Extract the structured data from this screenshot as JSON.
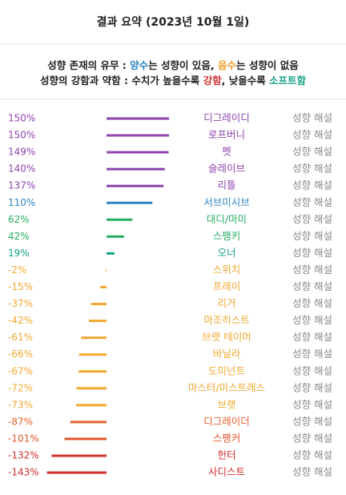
{
  "header": {
    "title": "결과 요약 (2023년 10월 1일)"
  },
  "legend": {
    "lines": [
      {
        "segments": [
          {
            "text": "성향 존재의 유무 : ",
            "color": "#222222"
          },
          {
            "text": "양수",
            "color": "#2e86c1"
          },
          {
            "text": "는 성향이 있음, ",
            "color": "#222222"
          },
          {
            "text": "음수",
            "color": "#f0a030"
          },
          {
            "text": "는 성향이 없음",
            "color": "#222222"
          }
        ]
      },
      {
        "segments": [
          {
            "text": "성향의 강함과 약함 : ",
            "color": "#222222"
          },
          {
            "text": "수치가 높을수록 ",
            "color": "#222222"
          },
          {
            "text": "강함",
            "color": "#d32f2f"
          },
          {
            "text": ", 낮을수록 ",
            "color": "#222222"
          },
          {
            "text": "소프트함",
            "color": "#16a085"
          }
        ]
      }
    ]
  },
  "rows": [
    {
      "value": 150,
      "value_label": "150%",
      "name": "디그레이디",
      "color": "#8e44ad",
      "link": "성향 해설"
    },
    {
      "value": 150,
      "value_label": "150%",
      "name": "로프버니",
      "color": "#8e44ad",
      "link": "성향 해설"
    },
    {
      "value": 149,
      "value_label": "149%",
      "name": "펫",
      "color": "#8e44ad",
      "link": "성향 해설"
    },
    {
      "value": 140,
      "value_label": "140%",
      "name": "슬레이브",
      "color": "#8e44ad",
      "link": "성향 해설"
    },
    {
      "value": 137,
      "value_label": "137%",
      "name": "리틀",
      "color": "#8e44ad",
      "link": "성향 해설"
    },
    {
      "value": 110,
      "value_label": "110%",
      "name": "서브미시브",
      "color": "#2e86c1",
      "link": "성향 해설"
    },
    {
      "value": 62,
      "value_label": "62%",
      "name": "대디/마미",
      "color": "#27ae60",
      "link": "성향 해설"
    },
    {
      "value": 42,
      "value_label": "42%",
      "name": "스팽키",
      "color": "#27ae60",
      "link": "성향 해설"
    },
    {
      "value": 19,
      "value_label": "19%",
      "name": "오너",
      "color": "#16a085",
      "link": "성향 해설"
    },
    {
      "value": -2,
      "value_label": "-2%",
      "name": "스위치",
      "color": "#f0a830",
      "link": "성향 해설"
    },
    {
      "value": -15,
      "value_label": "-15%",
      "name": "프레이",
      "color": "#f0a830",
      "link": "성향 해설"
    },
    {
      "value": -37,
      "value_label": "-37%",
      "name": "리거",
      "color": "#f0a830",
      "link": "성향 해설"
    },
    {
      "value": -42,
      "value_label": "-42%",
      "name": "마조히스트",
      "color": "#f0a830",
      "link": "성향 해설"
    },
    {
      "value": -61,
      "value_label": "-61%",
      "name": "브랫 테이머",
      "color": "#f0a830",
      "link": "성향 해설"
    },
    {
      "value": -66,
      "value_label": "-66%",
      "name": "바닐라",
      "color": "#f0a830",
      "link": "성향 해설"
    },
    {
      "value": -67,
      "value_label": "-67%",
      "name": "도미넌트",
      "color": "#f0a830",
      "link": "성향 해설"
    },
    {
      "value": -72,
      "value_label": "-72%",
      "name": "마스터/미스트레스",
      "color": "#f0a830",
      "link": "성향 해설"
    },
    {
      "value": -73,
      "value_label": "-73%",
      "name": "브랫",
      "color": "#f0a830",
      "link": "성향 해설"
    },
    {
      "value": -87,
      "value_label": "-87%",
      "name": "디그레이더",
      "color": "#e4602e",
      "link": "성향 해설"
    },
    {
      "value": -101,
      "value_label": "-101%",
      "name": "스팽커",
      "color": "#e0562b",
      "link": "성향 해설"
    },
    {
      "value": -132,
      "value_label": "-132%",
      "name": "헌터",
      "color": "#d32f2f",
      "link": "성향 해설"
    },
    {
      "value": -143,
      "value_label": "-143%",
      "name": "사디스트",
      "color": "#d32f2f",
      "link": "성향 해설"
    }
  ]
}
